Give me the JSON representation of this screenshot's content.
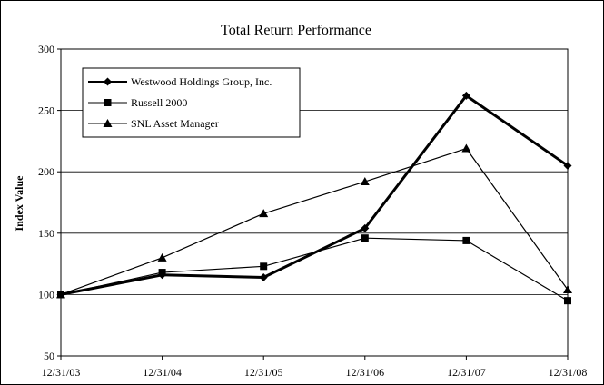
{
  "chart_data": {
    "type": "line",
    "title": "Total Return Performance",
    "xlabel": "",
    "ylabel": "Index Value",
    "categories": [
      "12/31/03",
      "12/31/04",
      "12/31/05",
      "12/31/06",
      "12/31/07",
      "12/31/08"
    ],
    "ylim": [
      50,
      300
    ],
    "yticks": [
      "50",
      "100",
      "150",
      "200",
      "250",
      "300"
    ],
    "grid": true,
    "legend_position": "top-left",
    "series": [
      {
        "name": "Westwood Holdings Group, Inc.",
        "marker": "diamond",
        "color": "#000000",
        "bold": true,
        "values": [
          100,
          116,
          114,
          154,
          262,
          205
        ]
      },
      {
        "name": "Russell 2000",
        "marker": "square",
        "color": "#000000",
        "bold": false,
        "values": [
          100,
          118,
          123,
          146,
          144,
          95
        ]
      },
      {
        "name": "SNL Asset Manager",
        "marker": "triangle",
        "color": "#000000",
        "bold": false,
        "values": [
          100,
          130,
          166,
          192,
          219,
          104
        ]
      }
    ]
  }
}
